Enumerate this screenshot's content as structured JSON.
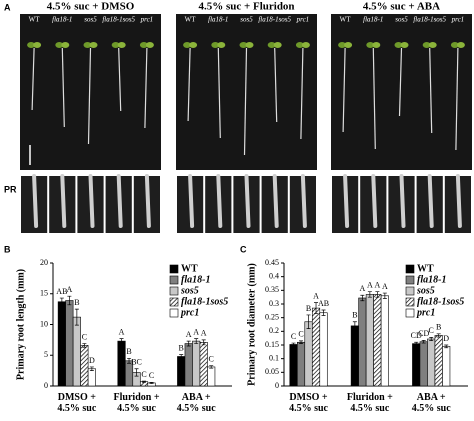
{
  "panel_a": {
    "label": "A",
    "conditions": [
      "4.5% suc + DMSO",
      "4.5% suc + Fluridon",
      "4.5% suc + ABA"
    ],
    "genotypes": [
      "WT",
      "fla18-1",
      "sos5",
      "fla18-1sos5",
      "prc1"
    ],
    "row_label": "PR"
  },
  "chart_data": [
    {
      "type": "bar",
      "panel_label": "B",
      "y_label": "Primary root length (mm)",
      "categories": [
        "DMSO +\n4.5% suc",
        "Fluridon +\n4.5% suc",
        "ABA +\n4.5% suc"
      ],
      "ylim": [
        0,
        20
      ],
      "yticks": [
        0,
        5,
        10,
        15,
        20
      ],
      "legend": "upper right",
      "series": [
        {
          "name": "WT",
          "color": "#000000",
          "values": [
            13.7,
            7.3,
            4.8
          ],
          "errors": [
            0.6,
            0.4,
            0.3
          ],
          "letters": [
            "AB",
            "A",
            "B"
          ]
        },
        {
          "name": "fla18-1",
          "italic": true,
          "color": "#7f7f7f",
          "values": [
            13.9,
            4.1,
            6.9
          ],
          "errors": [
            0.7,
            0.4,
            0.4
          ],
          "letters": [
            "A",
            "B",
            "A"
          ]
        },
        {
          "name": "sos5",
          "italic": true,
          "color": "#c8c8c8",
          "values": [
            11.2,
            2.2,
            7.3
          ],
          "errors": [
            1.3,
            0.6,
            0.4
          ],
          "letters": [
            "B",
            "BC",
            "A"
          ]
        },
        {
          "name": "fla18-1sos5",
          "italic": true,
          "color": "hatch",
          "values": [
            6.6,
            0.7,
            7.1
          ],
          "errors": [
            0.3,
            0.1,
            0.4
          ],
          "letters": [
            "C",
            "C",
            "A"
          ]
        },
        {
          "name": "prc1",
          "italic": true,
          "color": "#ffffff",
          "values": [
            2.8,
            0.5,
            3.1
          ],
          "errors": [
            0.3,
            0.1,
            0.2
          ],
          "letters": [
            "D",
            "C",
            "C"
          ]
        }
      ]
    },
    {
      "type": "bar",
      "panel_label": "C",
      "y_label": "Primary root diameter (mm)",
      "categories": [
        "DMSO +\n4.5% suc",
        "Fluridon +\n4.5% suc",
        "ABA +\n4.5% suc"
      ],
      "ylim": [
        0,
        0.45
      ],
      "yticks": [
        0,
        0.05,
        0.1,
        0.15,
        0.2,
        0.25,
        0.3,
        0.35,
        0.4,
        0.45
      ],
      "legend": "upper right",
      "series": [
        {
          "name": "WT",
          "color": "#000000",
          "values": [
            0.152,
            0.22,
            0.155
          ],
          "errors": [
            0.005,
            0.015,
            0.005
          ],
          "letters": [
            "C",
            "B",
            "CD"
          ]
        },
        {
          "name": "fla18-1",
          "italic": true,
          "color": "#7f7f7f",
          "values": [
            0.16,
            0.322,
            0.162
          ],
          "errors": [
            0.005,
            0.01,
            0.005
          ],
          "letters": [
            "C",
            "A",
            "CD"
          ]
        },
        {
          "name": "sos5",
          "italic": true,
          "color": "#c8c8c8",
          "values": [
            0.235,
            0.335,
            0.172
          ],
          "errors": [
            0.025,
            0.01,
            0.006
          ],
          "letters": [
            "B",
            "A",
            "C"
          ]
        },
        {
          "name": "fla18-1sos5",
          "italic": true,
          "color": "hatch",
          "values": [
            0.285,
            0.335,
            0.185
          ],
          "errors": [
            0.02,
            0.01,
            0.006
          ],
          "letters": [
            "A",
            "A",
            "B"
          ]
        },
        {
          "name": "prc1",
          "italic": true,
          "color": "#ffffff",
          "values": [
            0.268,
            0.33,
            0.145
          ],
          "errors": [
            0.01,
            0.01,
            0.005
          ],
          "letters": [
            "AB",
            "A",
            "D"
          ]
        }
      ]
    }
  ]
}
